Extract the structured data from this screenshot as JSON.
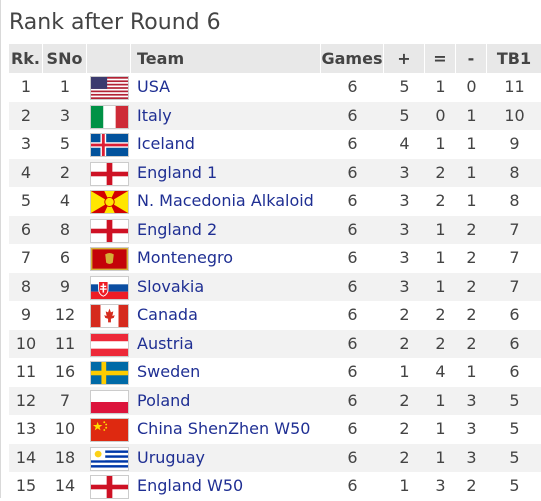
{
  "title": "Rank after Round 6",
  "headers": {
    "rank": "Rk.",
    "sno": "SNo",
    "team": "Team",
    "games": "Games",
    "plus": "+",
    "equal": "=",
    "minus": "-",
    "tb1": "TB1"
  },
  "rows": [
    {
      "rank": "1",
      "sno": "1",
      "team": "USA",
      "games": "6",
      "plus": "5",
      "equal": "1",
      "minus": "0",
      "tb1": "11",
      "flag": "usa"
    },
    {
      "rank": "2",
      "sno": "3",
      "team": "Italy",
      "games": "6",
      "plus": "5",
      "equal": "0",
      "minus": "1",
      "tb1": "10",
      "flag": "italy"
    },
    {
      "rank": "3",
      "sno": "5",
      "team": "Iceland",
      "games": "6",
      "plus": "4",
      "equal": "1",
      "minus": "1",
      "tb1": "9",
      "flag": "iceland"
    },
    {
      "rank": "4",
      "sno": "2",
      "team": "England 1",
      "games": "6",
      "plus": "3",
      "equal": "2",
      "minus": "1",
      "tb1": "8",
      "flag": "england"
    },
    {
      "rank": "5",
      "sno": "4",
      "team": "N. Macedonia Alkaloid",
      "games": "6",
      "plus": "3",
      "equal": "2",
      "minus": "1",
      "tb1": "8",
      "flag": "macedonia"
    },
    {
      "rank": "6",
      "sno": "8",
      "team": "England 2",
      "games": "6",
      "plus": "3",
      "equal": "1",
      "minus": "2",
      "tb1": "7",
      "flag": "england"
    },
    {
      "rank": "7",
      "sno": "6",
      "team": "Montenegro",
      "games": "6",
      "plus": "3",
      "equal": "1",
      "minus": "2",
      "tb1": "7",
      "flag": "montenegro"
    },
    {
      "rank": "8",
      "sno": "9",
      "team": "Slovakia",
      "games": "6",
      "plus": "3",
      "equal": "1",
      "minus": "2",
      "tb1": "7",
      "flag": "slovakia"
    },
    {
      "rank": "9",
      "sno": "12",
      "team": "Canada",
      "games": "6",
      "plus": "2",
      "equal": "2",
      "minus": "2",
      "tb1": "6",
      "flag": "canada"
    },
    {
      "rank": "10",
      "sno": "11",
      "team": "Austria",
      "games": "6",
      "plus": "2",
      "equal": "2",
      "minus": "2",
      "tb1": "6",
      "flag": "austria"
    },
    {
      "rank": "11",
      "sno": "16",
      "team": "Sweden",
      "games": "6",
      "plus": "1",
      "equal": "4",
      "minus": "1",
      "tb1": "6",
      "flag": "sweden"
    },
    {
      "rank": "12",
      "sno": "7",
      "team": "Poland",
      "games": "6",
      "plus": "2",
      "equal": "1",
      "minus": "3",
      "tb1": "5",
      "flag": "poland"
    },
    {
      "rank": "13",
      "sno": "10",
      "team": "China ShenZhen W50",
      "games": "6",
      "plus": "2",
      "equal": "1",
      "minus": "3",
      "tb1": "5",
      "flag": "china"
    },
    {
      "rank": "14",
      "sno": "18",
      "team": "Uruguay",
      "games": "6",
      "plus": "2",
      "equal": "1",
      "minus": "3",
      "tb1": "5",
      "flag": "uruguay"
    },
    {
      "rank": "15",
      "sno": "14",
      "team": "England W50",
      "games": "6",
      "plus": "1",
      "equal": "3",
      "minus": "2",
      "tb1": "5",
      "flag": "england"
    }
  ]
}
